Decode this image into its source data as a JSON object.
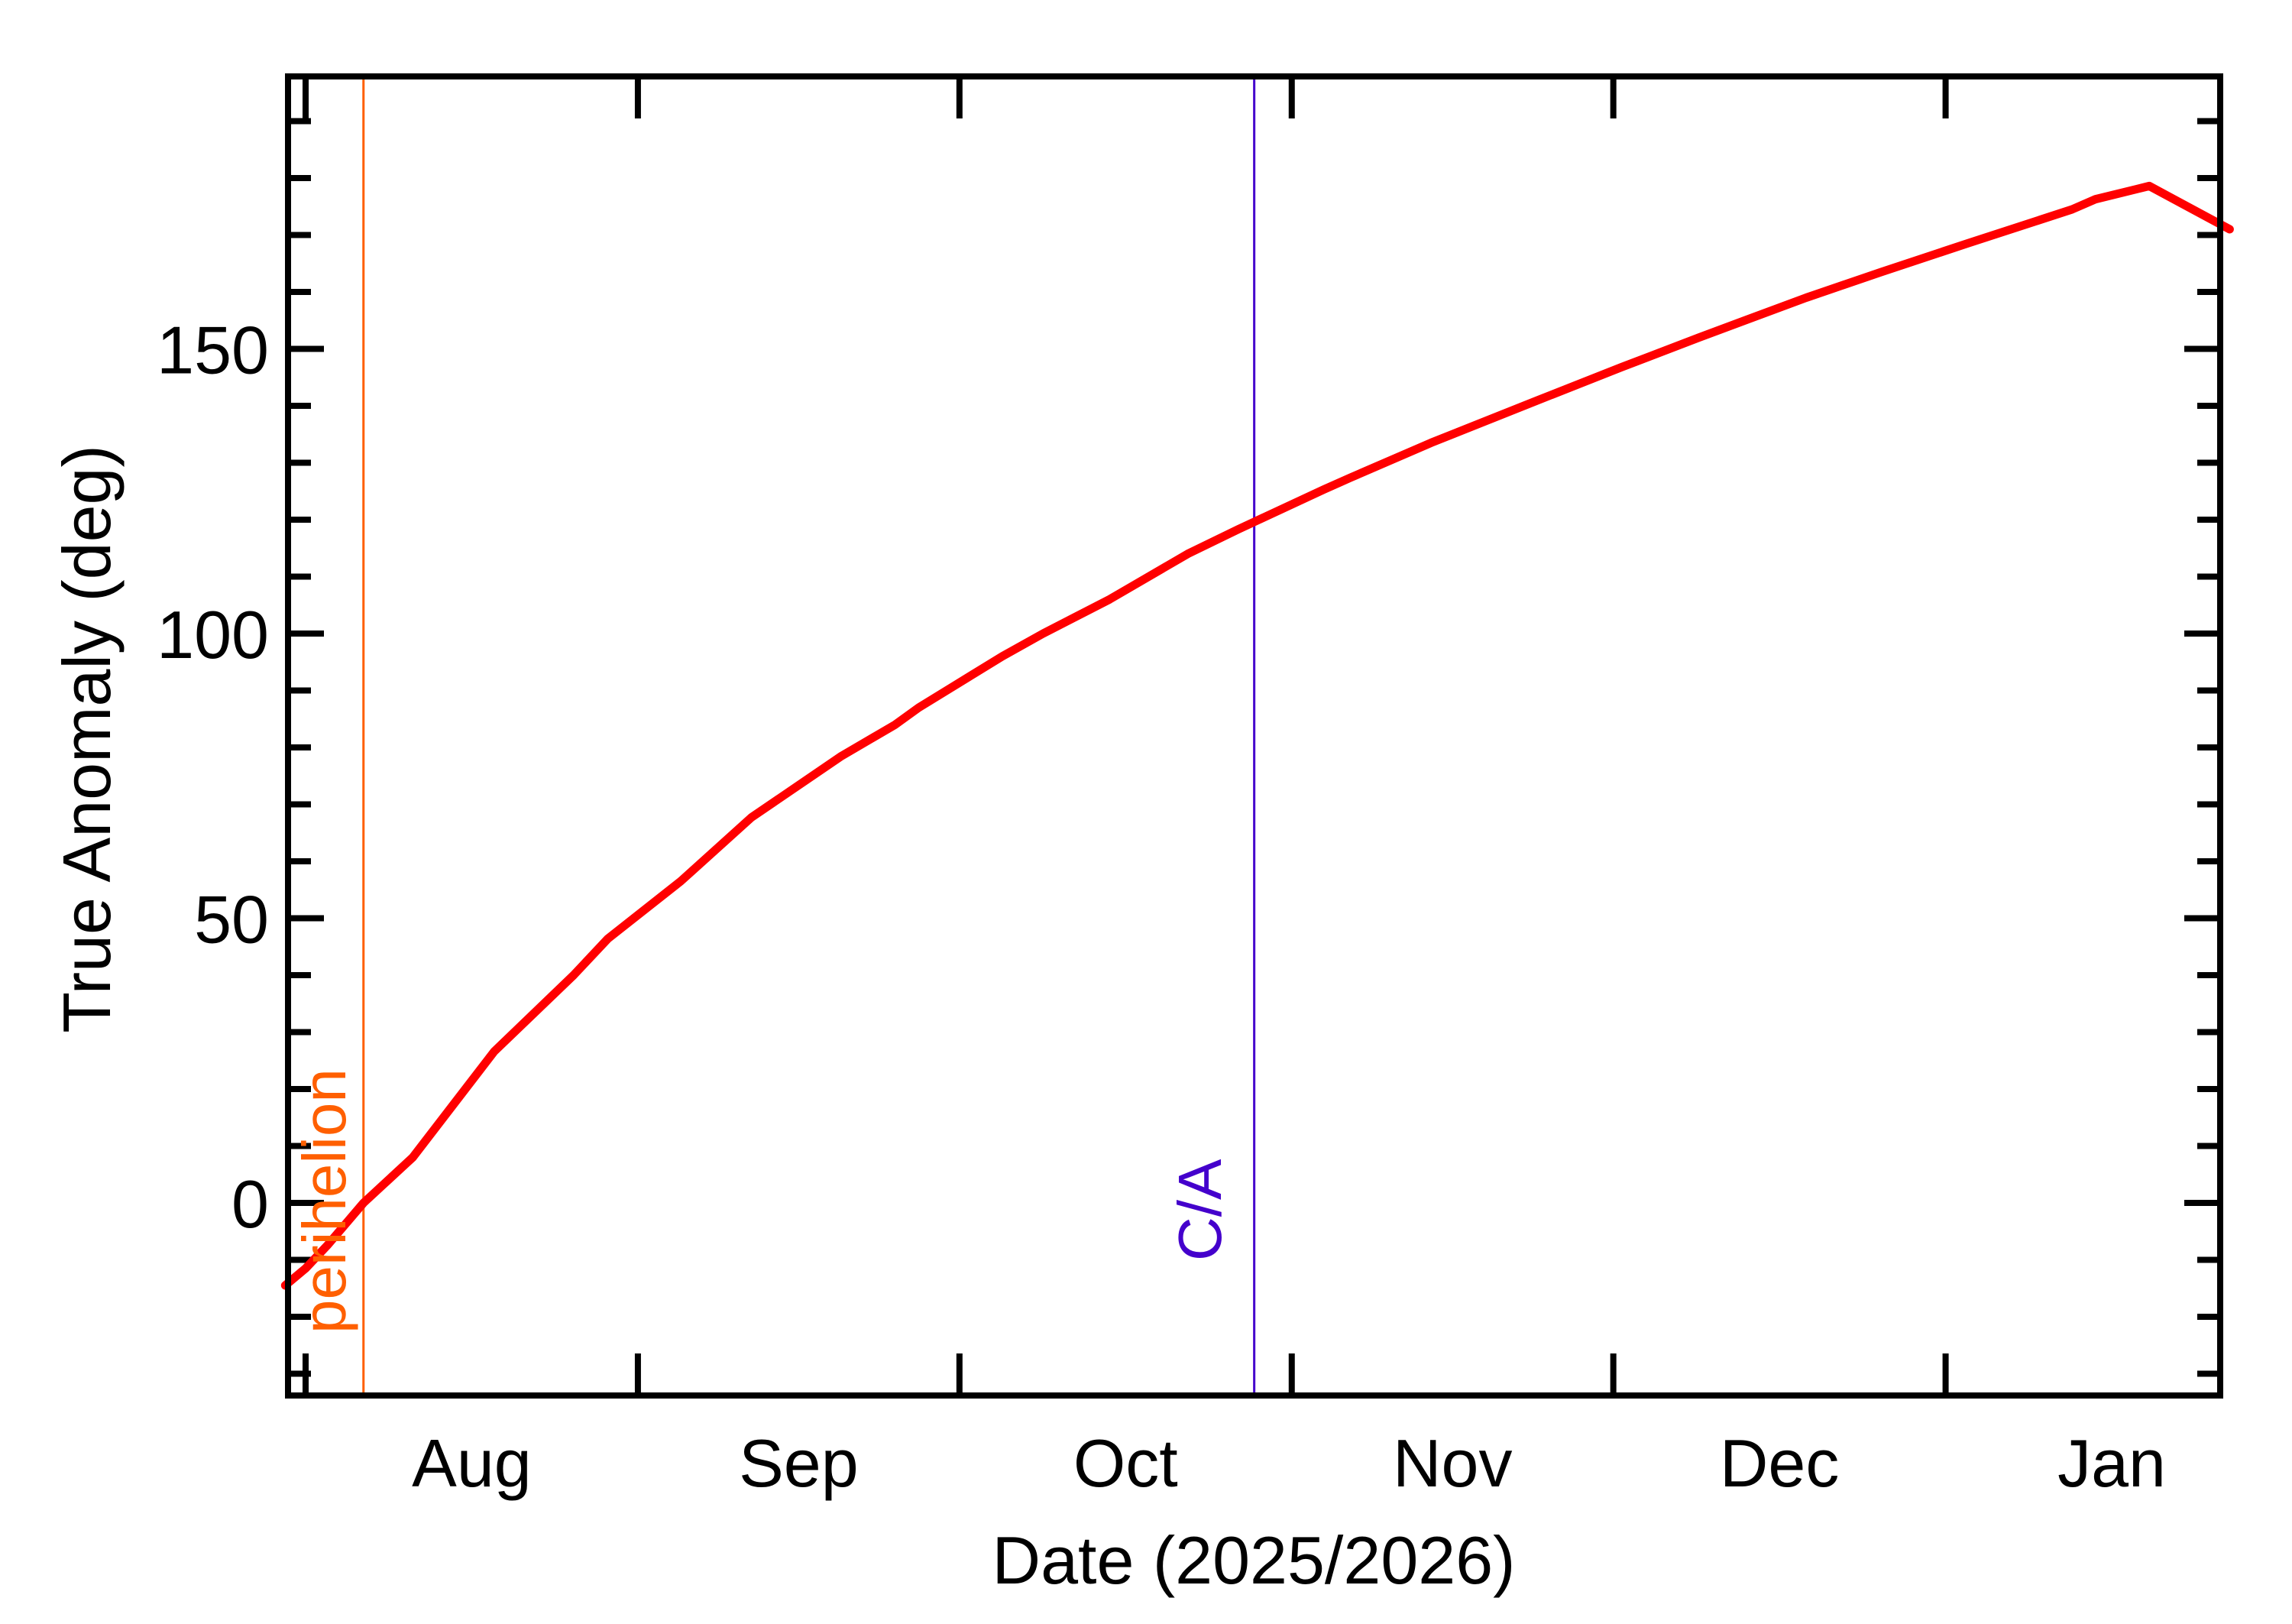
{
  "chart_data": {
    "type": "line",
    "title": "",
    "xlabel": "Date (2025/2026)",
    "ylabel": "True Anomaly (deg)",
    "ylim": [
      -34.4,
      198.4
    ],
    "xlim_days_from_aug1": [
      -1.9,
      179.5
    ],
    "grid": false,
    "legend": null,
    "x_month_ticks": [
      {
        "label": "Aug",
        "tick_day": 0,
        "label_day": 15.5
      },
      {
        "label": "Sep",
        "tick_day": 31,
        "label_day": 46
      },
      {
        "label": "Oct",
        "tick_day": 61,
        "label_day": 76.5
      },
      {
        "label": "Nov",
        "tick_day": 92,
        "label_day": 107
      },
      {
        "label": "Dec",
        "tick_day": 122,
        "label_day": 137.5
      },
      {
        "label": "Jan",
        "tick_day": 153,
        "label_day": 168.5
      }
    ],
    "y_ticks": [
      0,
      50,
      100,
      150
    ],
    "y_tick_labels": [
      "0",
      "50",
      "100",
      "150"
    ],
    "y_minor_step": 10,
    "series": [
      {
        "name": "True Anomaly",
        "color": "#ff0000",
        "x_days_from_aug1": [
          -1.9,
          0,
          2,
          5.4,
          10,
          17.6,
          25,
          28.2,
          35,
          41.6,
          50,
          55,
          57.2,
          65,
          68.8,
          75,
          82.3,
          87,
          95,
          97.5,
          105,
          115,
          122.8,
          130,
          140,
          147,
          155,
          164.8,
          167,
          172,
          179.5
        ],
        "values": [
          -14.5,
          -11.5,
          -7.5,
          0,
          8,
          26.6,
          40,
          46.4,
          56.5,
          67.7,
          78.5,
          84,
          87,
          96,
          100,
          106,
          114,
          118.3,
          125.3,
          127.4,
          133.5,
          141,
          146.8,
          152,
          159,
          163.5,
          168.5,
          174.5,
          176.3,
          178.6,
          171
        ]
      }
    ],
    "annotations": [
      {
        "label": "perihelion",
        "x_days_from_aug1": 5.4,
        "color": "#ff5f00",
        "orientation": "vertical line"
      },
      {
        "label": "C/A",
        "x_days_from_aug1": 88.5,
        "color": "#4400cc",
        "orientation": "vertical line"
      }
    ]
  },
  "axes": {
    "x_title": "Date (2025/2026)",
    "y_title": "True Anomaly (deg)"
  },
  "markers": {
    "perihelion_label": "perihelion",
    "ca_label": "C/A"
  },
  "colors": {
    "curve": "#ff0000",
    "perihelion": "#ff5f00",
    "ca": "#4400cc",
    "frame": "#000000"
  }
}
